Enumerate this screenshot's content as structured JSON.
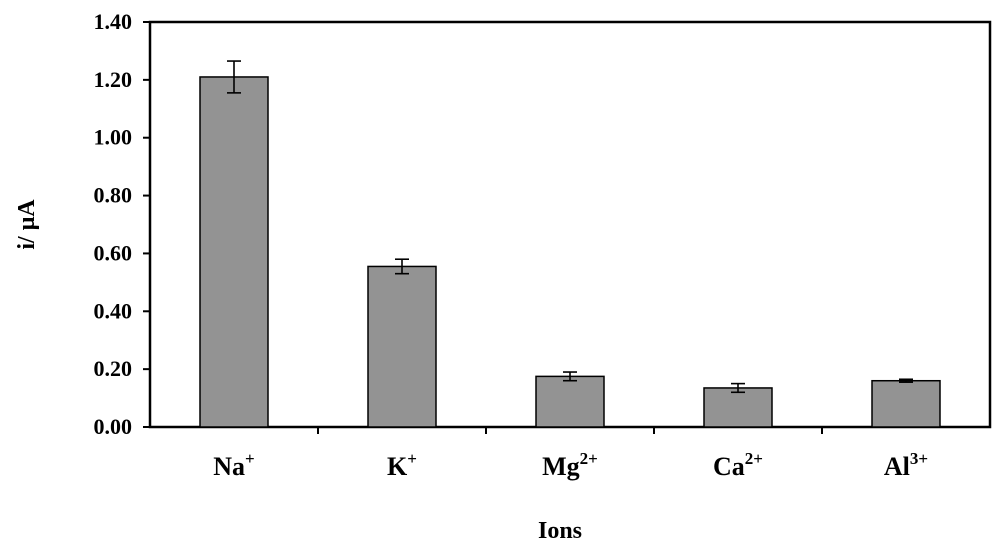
{
  "chart_data": {
    "type": "bar",
    "categories": [
      {
        "base": "Na",
        "sup": "+"
      },
      {
        "base": "K",
        "sup": "+"
      },
      {
        "base": "Mg",
        "sup": "2+"
      },
      {
        "base": "Ca",
        "sup": "2+"
      },
      {
        "base": "Al",
        "sup": "3+"
      }
    ],
    "values": [
      1.21,
      0.555,
      0.175,
      0.135,
      0.16
    ],
    "errors": [
      0.055,
      0.025,
      0.015,
      0.015,
      0.005
    ],
    "xlabel": "Ions",
    "ylabel": "i/ μA",
    "ylim": [
      0,
      1.4
    ],
    "yticks": [
      "0.00",
      "0.20",
      "0.40",
      "0.60",
      "0.80",
      "1.00",
      "1.20",
      "1.40"
    ],
    "grid": false,
    "legend": "none",
    "bar_color": "#939393",
    "bar_edge_color": "#000000"
  }
}
